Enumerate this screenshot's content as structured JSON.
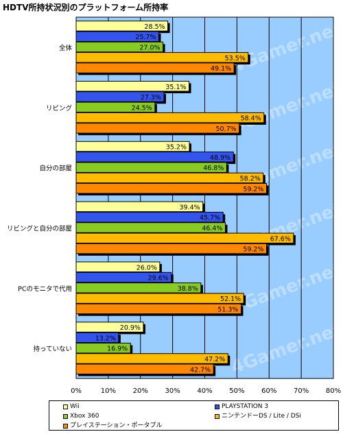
{
  "title": "HDTV所持状況別のプラットフォーム所持率",
  "watermark": "4Gamer.net",
  "chart_data": {
    "type": "bar",
    "orientation": "horizontal",
    "title": "HDTV所持状況別のプラットフォーム所持率",
    "categories": [
      "全体",
      "リビング",
      "自分の部屋",
      "リビングと自分の部屋",
      "PCのモニタで代用",
      "持っていない"
    ],
    "series": [
      {
        "name": "Wii",
        "color": "#ffff99",
        "values": [
          28.5,
          35.1,
          35.2,
          39.4,
          26.0,
          20.9
        ]
      },
      {
        "name": "PLAYSTATION 3",
        "color": "#3355ee",
        "values": [
          25.7,
          27.3,
          48.9,
          45.7,
          29.6,
          13.2
        ]
      },
      {
        "name": "Xbox 360",
        "color": "#88cc22",
        "values": [
          27.0,
          24.5,
          46.8,
          46.4,
          38.8,
          16.9
        ]
      },
      {
        "name": "ニンテンドーDS / Lite / DSi",
        "color": "#ffbb00",
        "values": [
          53.5,
          58.4,
          58.2,
          67.6,
          52.1,
          47.2
        ]
      },
      {
        "name": "プレイステーション・ポータブル",
        "color": "#ff8800",
        "values": [
          49.1,
          50.7,
          59.2,
          59.2,
          51.3,
          42.7
        ]
      }
    ],
    "value_labels": [
      [
        "28.5%",
        "35.1%",
        "35.2%",
        "39.4%",
        "26.0%",
        "20.9%"
      ],
      [
        "25.7%",
        "27.3%",
        "48.9%",
        "45.7%",
        "29.6%",
        "13.2%"
      ],
      [
        "27.0%",
        "24.5%",
        "46.8%",
        "46.4%",
        "38.8%",
        "16.9%"
      ],
      [
        "53.5%",
        "58.4%",
        "58.2%",
        "67.6%",
        "52.1%",
        "47.2%"
      ],
      [
        "49.1%",
        "50.7%",
        "59.2%",
        "59.2%",
        "51.3%",
        "42.7%"
      ]
    ],
    "xlim": [
      0,
      80
    ],
    "xticks": [
      "0%",
      "10%",
      "20%",
      "30%",
      "40%",
      "50%",
      "60%",
      "70%",
      "80%"
    ],
    "grid": true,
    "plot_background": "#99ccff",
    "legend_position": "bottom"
  }
}
